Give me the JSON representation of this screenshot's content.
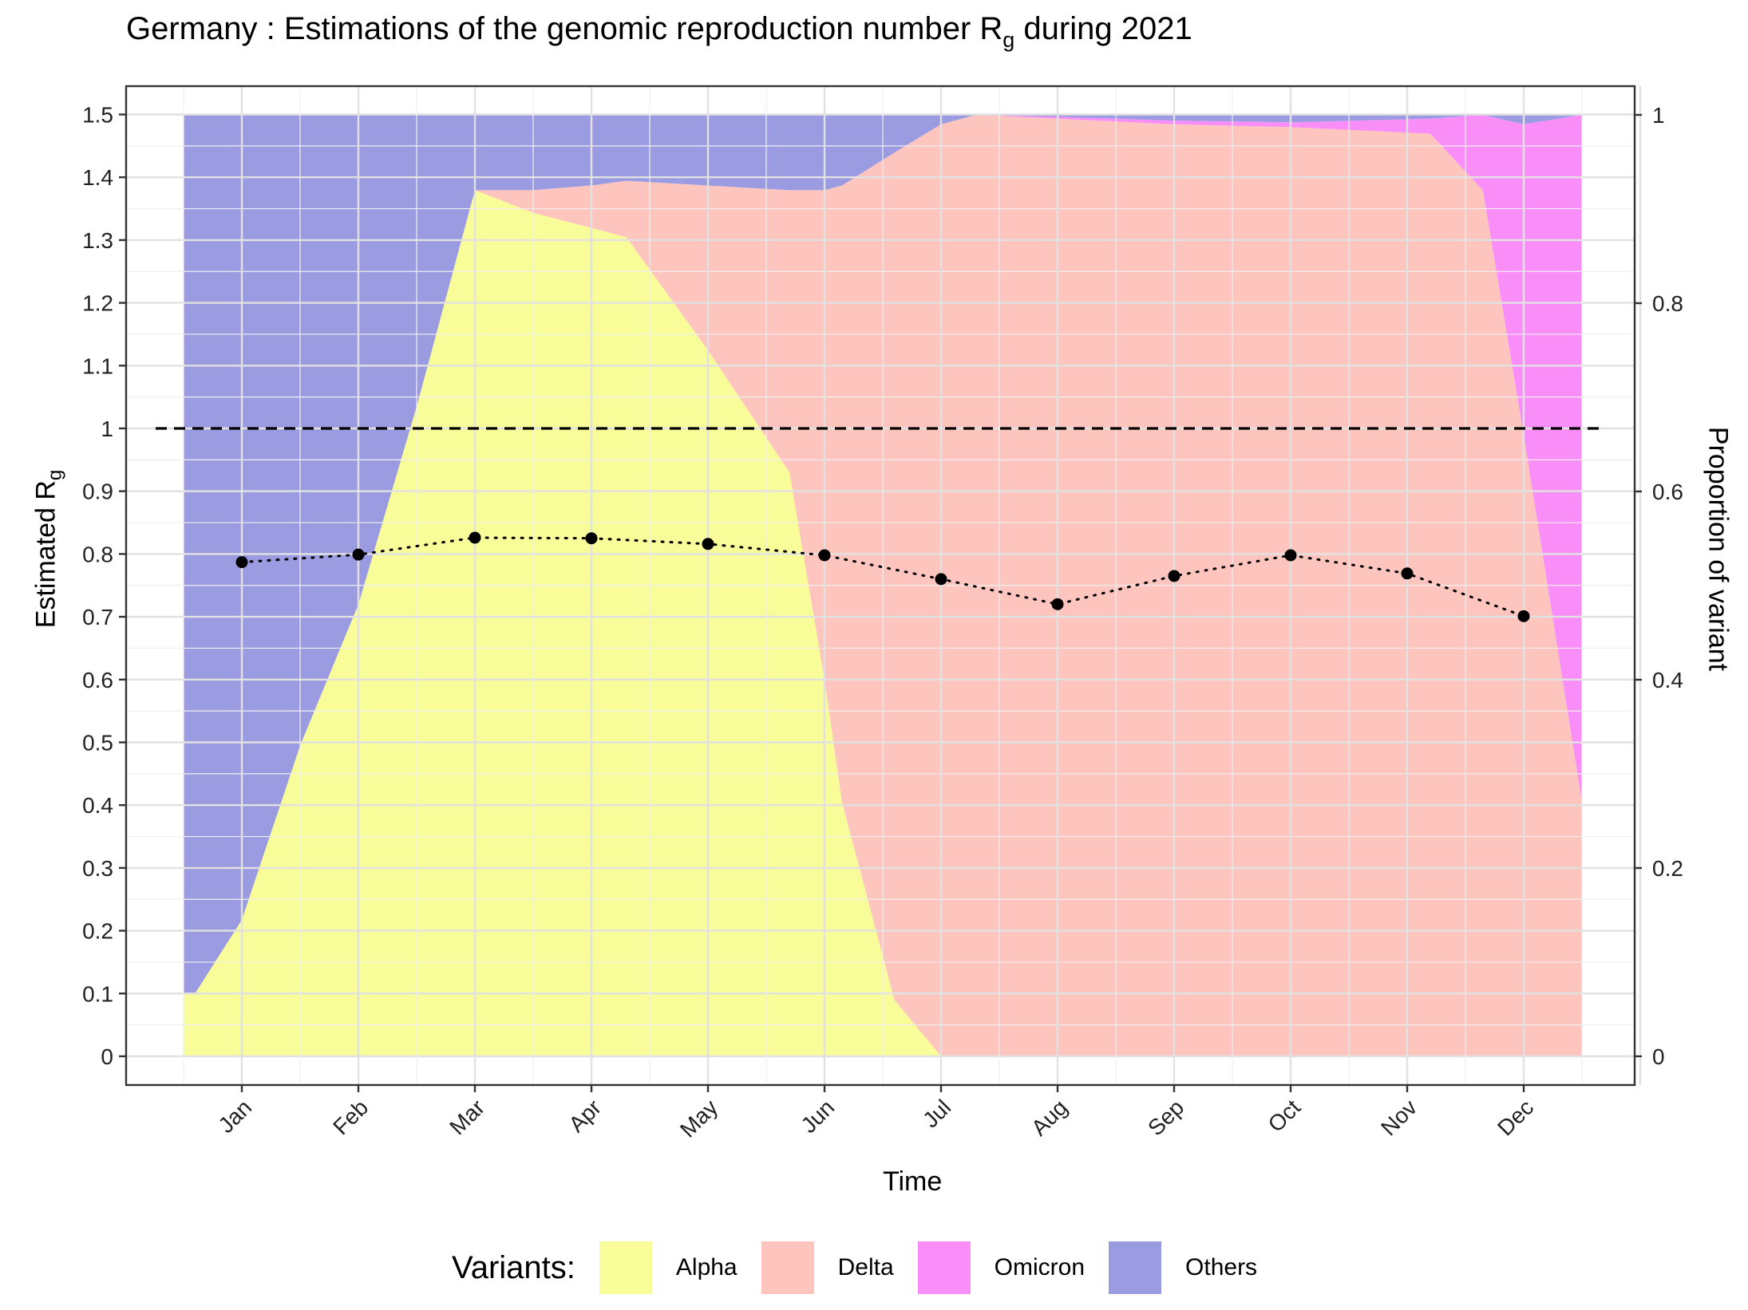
{
  "title": {
    "main": "Germany : Estimations of the genomic reproduction number R",
    "sub": "g",
    "tail": " during 2021"
  },
  "y_axis_label": {
    "main": "Estimated R",
    "sub": "g"
  },
  "y2_axis_label": "Proportion of variant",
  "x_axis_label": "Time",
  "legend": {
    "title": "Variants:",
    "items": [
      {
        "label": "Alpha",
        "color": "#F8FC99"
      },
      {
        "label": "Delta",
        "color": "#FDC5BE"
      },
      {
        "label": "Omicron",
        "color": "#FA8EF8"
      },
      {
        "label": "Others",
        "color": "#9B9BE2"
      }
    ]
  },
  "chart_data": {
    "type": "area",
    "description_free": true,
    "x_ticks": [
      "Jan",
      "Feb",
      "Mar",
      "Apr",
      "May",
      "Jun",
      "Jul",
      "Aug",
      "Sep",
      "Oct",
      "Nov",
      "Dec"
    ],
    "y_ticks": [
      "0",
      "0.1",
      "0.2",
      "0.3",
      "0.4",
      "0.5",
      "0.6",
      "0.7",
      "0.8",
      "0.9",
      "1",
      "1.1",
      "1.2",
      "1.3",
      "1.4",
      "1.5"
    ],
    "y2_ticks": [
      "0",
      "0.2",
      "0.4",
      "0.6",
      "0.8",
      "1"
    ],
    "ylim": [
      0,
      1.5
    ],
    "y2lim": [
      0,
      1
    ],
    "reference_line": {
      "y": 1,
      "style": "dashed"
    },
    "rg_series": {
      "style": "dotted line with points",
      "months": [
        1,
        2,
        3,
        4,
        5,
        6,
        7,
        8,
        9,
        10,
        11,
        12
      ],
      "values": [
        0.787,
        0.799,
        0.826,
        0.825,
        0.816,
        0.798,
        0.76,
        0.72,
        0.765,
        0.798,
        0.769,
        0.701
      ]
    },
    "proportions": {
      "x": [
        0.5,
        0.6,
        1.0,
        1.5,
        2.0,
        2.5,
        3.0,
        3.5,
        4.0,
        4.3,
        5.0,
        5.7,
        6.0,
        6.15,
        6.6,
        7.0,
        7.3,
        8.0,
        9.0,
        10.0,
        11.2,
        11.65,
        12.0,
        12.5
      ],
      "series": [
        {
          "name": "Alpha",
          "values": [
            0.067,
            0.067,
            0.145,
            0.33,
            0.48,
            0.69,
            0.92,
            0.896,
            0.88,
            0.87,
            0.75,
            0.62,
            0.4,
            0.27,
            0.06,
            0.0,
            0.0,
            0.0,
            0.0,
            0.0,
            0.0,
            0.0,
            0.0,
            0.0
          ]
        },
        {
          "name": "Delta",
          "values": [
            0.0,
            0.0,
            0.0,
            0.0,
            0.0,
            0.0,
            0.0,
            0.024,
            0.045,
            0.06,
            0.175,
            0.3,
            0.52,
            0.655,
            0.9,
            0.99,
            1.0,
            0.996,
            0.99,
            0.987,
            0.98,
            0.92,
            0.66,
            0.27
          ]
        },
        {
          "name": "Omicron",
          "values": [
            0.0,
            0.0,
            0.0,
            0.0,
            0.0,
            0.0,
            0.0,
            0.0,
            0.0,
            0.0,
            0.0,
            0.0,
            0.0,
            0.0,
            0.0,
            0.0,
            0.0,
            0.002,
            0.004,
            0.005,
            0.016,
            0.08,
            0.33,
            0.73
          ]
        },
        {
          "name": "Others",
          "values": [
            0.933,
            0.933,
            0.855,
            0.67,
            0.52,
            0.31,
            0.08,
            0.08,
            0.075,
            0.07,
            0.075,
            0.08,
            0.08,
            0.075,
            0.04,
            0.01,
            0.0,
            0.002,
            0.006,
            0.008,
            0.004,
            0.0,
            0.01,
            0.0
          ]
        }
      ]
    }
  }
}
